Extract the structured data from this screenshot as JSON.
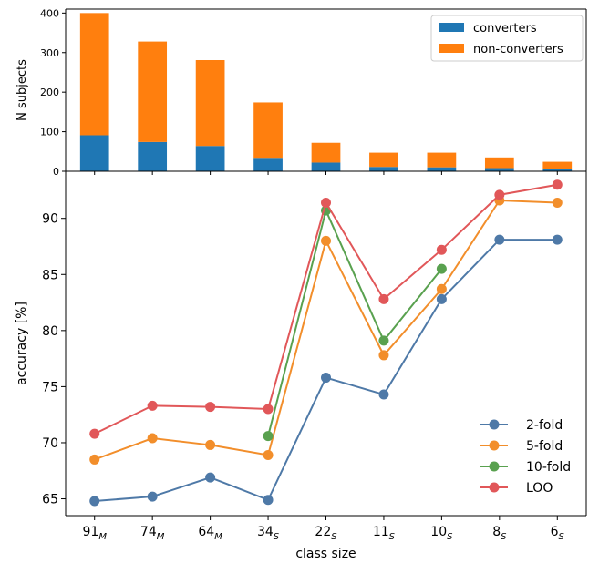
{
  "chart_data": [
    {
      "type": "bar",
      "stacked": true,
      "categories": [
        "91",
        "74",
        "64",
        "34",
        "22",
        "11",
        "10",
        "8",
        "6"
      ],
      "series": [
        {
          "name": "converters",
          "color": "#1f77b4",
          "values": [
            91,
            74,
            64,
            34,
            22,
            11,
            10,
            8,
            6
          ]
        },
        {
          "name": "non-converters",
          "color": "#ff7f0e",
          "values": [
            309,
            254,
            217,
            140,
            50,
            36,
            37,
            27,
            18
          ]
        }
      ],
      "ylabel": "N subjects",
      "ylim": [
        0,
        410
      ],
      "yticks": [
        "0",
        "100",
        "200",
        "300",
        "400"
      ],
      "legend_position": "top-right",
      "grid": false
    },
    {
      "type": "line",
      "categories": [
        "91",
        "74",
        "64",
        "34",
        "22",
        "11",
        "10",
        "8",
        "6"
      ],
      "category_subscripts": [
        "M",
        "M",
        "M",
        "S",
        "S",
        "S",
        "S",
        "S",
        "S"
      ],
      "series": [
        {
          "name": "2-fold",
          "color": "#4e79a7",
          "values": [
            64.8,
            65.2,
            66.9,
            64.9,
            75.8,
            74.3,
            82.8,
            88.1,
            88.1
          ]
        },
        {
          "name": "5-fold",
          "color": "#f28e2b",
          "values": [
            68.5,
            70.4,
            69.8,
            68.9,
            88.0,
            77.8,
            83.7,
            91.6,
            91.4
          ]
        },
        {
          "name": "10-fold",
          "color": "#59a14f",
          "values": [
            null,
            null,
            null,
            70.6,
            90.7,
            79.1,
            85.5,
            null,
            null
          ]
        },
        {
          "name": "LOO",
          "color": "#e15759",
          "values": [
            70.8,
            73.3,
            73.2,
            73.0,
            91.4,
            82.8,
            87.2,
            92.1,
            93.0
          ]
        }
      ],
      "xlabel": "class size",
      "ylabel": "accuracy [%]",
      "ylim": [
        63.5,
        94.2
      ],
      "yticks": [
        "65",
        "70",
        "75",
        "80",
        "85",
        "90"
      ],
      "legend_position": "lower-right",
      "grid": false
    }
  ]
}
